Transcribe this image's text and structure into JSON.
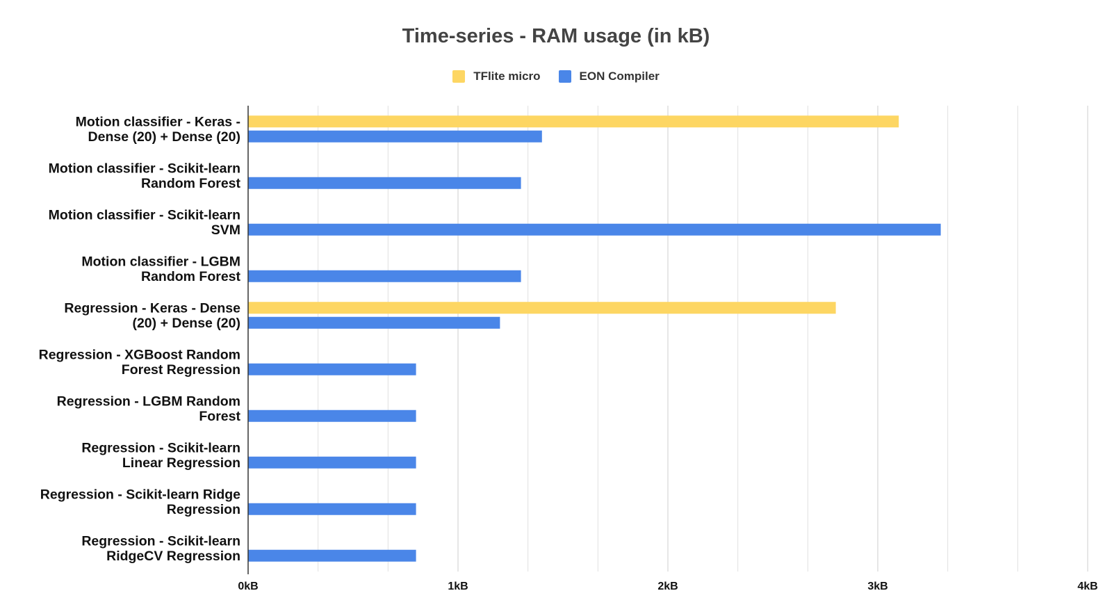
{
  "chart_data": {
    "type": "bar",
    "orientation": "horizontal",
    "title": "Time-series - RAM usage (in kB)",
    "legend_position": "top",
    "grid": true,
    "xlim": [
      0,
      4
    ],
    "x_ticks": [
      "0kB",
      "1kB",
      "2kB",
      "3kB",
      "4kB"
    ],
    "categories": [
      [
        "Motion classifier - Keras -",
        "Dense (20) + Dense (20)"
      ],
      [
        "Motion classifier  - Scikit-learn",
        "Random Forest"
      ],
      [
        "Motion classifier  - Scikit-learn",
        "SVM"
      ],
      [
        "Motion classifier - LGBM",
        "Random Forest"
      ],
      [
        "Regression - Keras - Dense",
        "(20) + Dense (20)"
      ],
      [
        "Regression - XGBoost Random",
        "Forest Regression"
      ],
      [
        "Regression - LGBM Random",
        "Forest"
      ],
      [
        "Regression - Scikit-learn",
        "Linear Regression"
      ],
      [
        "Regression - Scikit-learn Ridge",
        "Regression"
      ],
      [
        "Regression - Scikit-learn",
        "RidgeCV Regression"
      ]
    ],
    "series": [
      {
        "name": "TFlite micro",
        "color": "#fdd663",
        "values": [
          3.1,
          null,
          null,
          null,
          2.8,
          null,
          null,
          null,
          null,
          null
        ]
      },
      {
        "name": "EON Compiler",
        "color": "#4a86e8",
        "values": [
          1.4,
          1.3,
          3.3,
          1.3,
          1.2,
          0.8,
          0.8,
          0.8,
          0.8,
          0.8
        ]
      }
    ]
  }
}
